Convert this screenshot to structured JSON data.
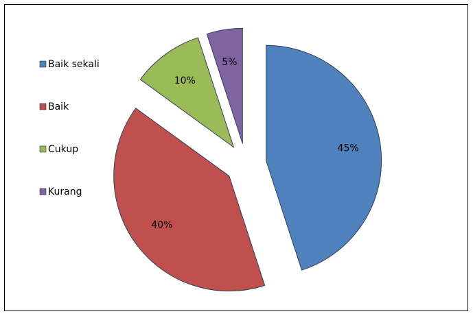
{
  "chart_data": {
    "type": "pie",
    "title": "",
    "categories": [
      "Baik sekali",
      "Baik",
      "Cukup",
      "Kurang"
    ],
    "values": [
      45,
      40,
      10,
      5
    ],
    "data_labels": [
      "45%",
      "40%",
      "10%",
      "5%"
    ],
    "colors": [
      "#4F81BD",
      "#C0504D",
      "#9BBB59",
      "#8064A2"
    ],
    "exploded": true,
    "legend_position": "left"
  }
}
